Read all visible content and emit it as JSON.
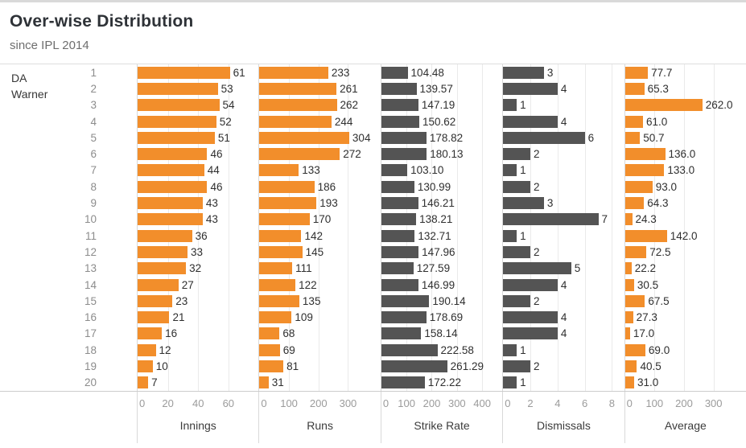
{
  "header": {
    "title": "Over-wise Distribution",
    "subtitle": "since IPL 2014"
  },
  "player": {
    "line1": "DA",
    "line2": "Warner"
  },
  "colors": {
    "bar_orange": "#F28E2B",
    "bar_gray": "#545454",
    "gridline": "#EAEAEA"
  },
  "chart_data": {
    "type": "bar",
    "orientation": "horizontal",
    "title": "Over-wise Distribution",
    "subtitle": "since IPL 2014",
    "row_group_label": "DA Warner",
    "categories": [
      1,
      2,
      3,
      4,
      5,
      6,
      7,
      8,
      9,
      10,
      11,
      12,
      13,
      14,
      15,
      16,
      17,
      18,
      19,
      20
    ],
    "grid": true,
    "legend": false,
    "series": [
      {
        "name": "Innings",
        "color": "#F28E2B",
        "label_decimals": 0,
        "axis_ticks": [
          0,
          20,
          40,
          60
        ],
        "axis_max": 80,
        "values": [
          61,
          53,
          54,
          52,
          51,
          46,
          44,
          46,
          43,
          43,
          36,
          33,
          32,
          27,
          23,
          21,
          16,
          12,
          10,
          7
        ]
      },
      {
        "name": "Runs",
        "color": "#F28E2B",
        "label_decimals": 0,
        "axis_ticks": [
          0,
          100,
          200,
          300
        ],
        "axis_max": 410,
        "values": [
          233,
          261,
          262,
          244,
          304,
          272,
          133,
          186,
          193,
          170,
          142,
          145,
          111,
          122,
          135,
          109,
          68,
          69,
          81,
          31
        ]
      },
      {
        "name": "Strike Rate",
        "color": "#545454",
        "label_decimals": 2,
        "axis_ticks": [
          0,
          100,
          200,
          300,
          400
        ],
        "axis_max": 480,
        "values": [
          104.48,
          139.57,
          147.19,
          150.62,
          178.82,
          180.13,
          103.1,
          130.99,
          146.21,
          138.21,
          132.71,
          147.96,
          127.59,
          146.99,
          190.14,
          178.69,
          158.14,
          222.58,
          261.29,
          172.22
        ]
      },
      {
        "name": "Dismissals",
        "color": "#545454",
        "label_decimals": 0,
        "axis_ticks": [
          0,
          2,
          4,
          6,
          8
        ],
        "axis_max": 8.9,
        "values": [
          3,
          4,
          1,
          4,
          6,
          2,
          1,
          2,
          3,
          7,
          1,
          2,
          5,
          4,
          2,
          4,
          4,
          1,
          2,
          1
        ]
      },
      {
        "name": "Average",
        "color": "#F28E2B",
        "label_decimals": 1,
        "axis_ticks": [
          0,
          100,
          200,
          300
        ],
        "axis_max": 410,
        "values": [
          77.7,
          65.3,
          262.0,
          61.0,
          50.7,
          136.0,
          133.0,
          93.0,
          64.3,
          24.3,
          142.0,
          72.5,
          22.2,
          30.5,
          67.5,
          27.3,
          17.0,
          69.0,
          40.5,
          31.0
        ]
      }
    ]
  }
}
